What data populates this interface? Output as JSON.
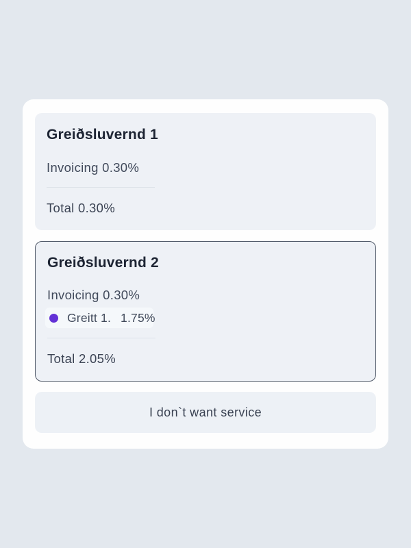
{
  "card1": {
    "title": "Greiðsluvernd 1",
    "invoicing_label": "Invoicing",
    "invoicing_value": "0.30%",
    "total_label": "Total",
    "total_value": "0.30%"
  },
  "card2": {
    "title": "Greiðsluvernd 2",
    "invoicing_label": "Invoicing",
    "invoicing_value": "0.30%",
    "bullet": {
      "label": "Greitt 1.",
      "value": "1.75%"
    },
    "total_label": "Total",
    "total_value": "2.05%"
  },
  "decline_button": {
    "label": "I don`t want service"
  },
  "colors": {
    "page_background": "#e3e8ee",
    "panel_background": "#fefefe",
    "option_card_background": "#eef1f6",
    "selected_card_border": "#525b6a",
    "bullet_dot": "#6331d6",
    "title_text": "#1d2433",
    "body_text": "#414a5b"
  }
}
